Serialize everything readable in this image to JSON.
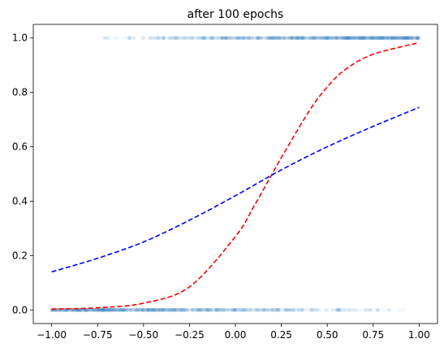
{
  "chart_data": {
    "type": "scatter",
    "title": "after 100 epochs",
    "xlabel": "",
    "ylabel": "",
    "xlim": [
      -1.1,
      1.1
    ],
    "ylim": [
      -0.05,
      1.05
    ],
    "x_ticks": [
      -1.0,
      -0.75,
      -0.5,
      -0.25,
      0.0,
      0.25,
      0.5,
      0.75,
      1.0
    ],
    "x_tick_labels": [
      "−1.00",
      "−0.75",
      "−0.50",
      "−0.25",
      "0.00",
      "0.25",
      "0.50",
      "0.75",
      "1.00"
    ],
    "y_ticks": [
      0.0,
      0.2,
      0.4,
      0.6,
      0.8,
      1.0
    ],
    "y_tick_labels": [
      "0.0",
      "0.2",
      "0.4",
      "0.6",
      "0.8",
      "1.0"
    ],
    "grid": false,
    "legend": "none",
    "points": {
      "color": "#1f77b4",
      "alpha": 0.06,
      "label_1_x_range": [
        -0.75,
        1.0
      ],
      "label_0_x_range": [
        -1.0,
        0.92
      ],
      "samples_per_class": 900
    },
    "series": [
      {
        "style": "dashed",
        "color": "#ff0000",
        "x": [
          -1.0,
          -0.75,
          -0.5,
          -0.25,
          0.0,
          0.1,
          0.2,
          0.25,
          0.4,
          0.5,
          0.6,
          0.75,
          1.0
        ],
        "y": [
          0.003,
          0.008,
          0.025,
          0.085,
          0.27,
          0.38,
          0.5,
          0.56,
          0.73,
          0.82,
          0.885,
          0.94,
          0.983
        ]
      },
      {
        "style": "dashed",
        "color": "#0000ff",
        "x": [
          -1.0,
          -0.75,
          -0.5,
          -0.25,
          0.0,
          0.25,
          0.5,
          0.75,
          1.0
        ],
        "y": [
          0.14,
          0.19,
          0.25,
          0.33,
          0.42,
          0.515,
          0.6,
          0.675,
          0.745
        ]
      }
    ]
  }
}
